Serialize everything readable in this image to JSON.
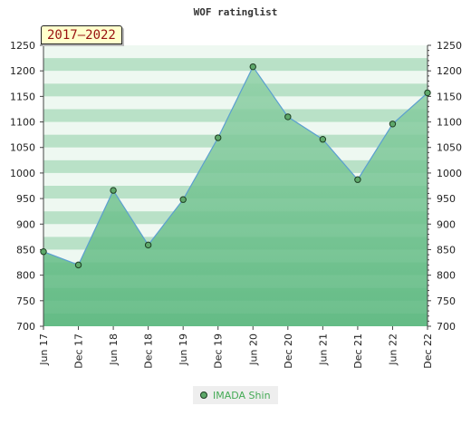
{
  "chart_data": {
    "type": "area",
    "title": "WOF ratinglist",
    "badge": "2017–2022",
    "categories": [
      "Jun 17",
      "Dec 17",
      "Jun 18",
      "Dec 18",
      "Jun 19",
      "Dec 19",
      "Jun 20",
      "Dec 20",
      "Jun 21",
      "Dec 21",
      "Jun 22",
      "Dec 22"
    ],
    "series": [
      {
        "name": "IMADA Shin",
        "values": [
          846,
          820,
          966,
          859,
          948,
          1069,
          1208,
          1110,
          1066,
          987,
          1096,
          1157
        ]
      }
    ],
    "ylim": [
      700,
      1250
    ],
    "yticks": [
      700,
      750,
      800,
      850,
      900,
      950,
      1000,
      1050,
      1100,
      1150,
      1200,
      1250
    ],
    "grid": true,
    "legend_position": "bottom",
    "colors": {
      "line": "#5b9fd0",
      "marker_fill": "#5ea86a",
      "marker_edge": "#1d3d22",
      "area_top": "#8fd0a6",
      "area_bottom": "#55b57a",
      "band_dark": "#b9e1c7",
      "band_light": "#eef8f1"
    }
  }
}
